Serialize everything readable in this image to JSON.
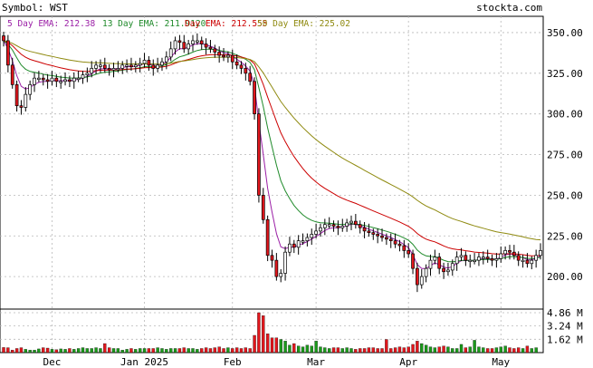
{
  "header": {
    "symbol_label": "Symbol: WST",
    "brand": "stockta.com"
  },
  "chart_data": {
    "type": "candlestick",
    "ticker": "WST",
    "legend": [
      {
        "label": "5 Day EMA: 212.38",
        "color": "#9b1fa6"
      },
      {
        "label": "13 Day EMA: 211.9120",
        "color": "#1f8a2a"
      },
      {
        "label": "Day EMA: 212.555",
        "color": "#cc0000"
      },
      {
        "label": "50 Day EMA: 225.02",
        "color": "#8f8a10"
      }
    ],
    "price_axis": {
      "ticks": [
        "350.00",
        "325.00",
        "300.00",
        "275.00",
        "250.00",
        "225.00",
        "200.00"
      ],
      "values": [
        350,
        325,
        300,
        275,
        250,
        225,
        200
      ],
      "ylim": [
        180,
        360
      ]
    },
    "volume_axis": {
      "ticks": [
        "4.86 M",
        "3.24 M",
        "1.62 M"
      ],
      "values": [
        4.86,
        3.24,
        1.62
      ],
      "ylim": [
        0,
        5.3
      ]
    },
    "x_labels": [
      {
        "text": "Dec",
        "index": 11
      },
      {
        "text": "Jan 2025",
        "index": 32
      },
      {
        "text": "Feb",
        "index": 52
      },
      {
        "text": "Mar",
        "index": 71
      },
      {
        "text": "Apr",
        "index": 92
      },
      {
        "text": "May",
        "index": 113
      }
    ],
    "closes": [
      345,
      330,
      318,
      305,
      304,
      312,
      318,
      322,
      322,
      321,
      320,
      322,
      320,
      320,
      321,
      320,
      322,
      322,
      324,
      325,
      328,
      330,
      330,
      328,
      327,
      328,
      328,
      330,
      330,
      329,
      330,
      331,
      333,
      330,
      328,
      330,
      332,
      335,
      340,
      345,
      344,
      340,
      343,
      345,
      345,
      343,
      341,
      340,
      338,
      336,
      335,
      336,
      332,
      330,
      328,
      325,
      320,
      300,
      250,
      235,
      213,
      210,
      200,
      202,
      215,
      220,
      218,
      222,
      222,
      224,
      226,
      228,
      230,
      232,
      232,
      231,
      230,
      231,
      233,
      234,
      232,
      230,
      228,
      227,
      226,
      225,
      224,
      223,
      222,
      220,
      219,
      216,
      214,
      205,
      195,
      200,
      205,
      210,
      212,
      205,
      203,
      204,
      208,
      212,
      213,
      210,
      210,
      210,
      212,
      212,
      211,
      210,
      211,
      214,
      216,
      215,
      213,
      210,
      210,
      208,
      210,
      213,
      216
    ],
    "volume": [
      0.62,
      0.6,
      0.3,
      0.5,
      0.6,
      0.4,
      0.3,
      0.3,
      0.45,
      0.6,
      0.55,
      0.4,
      0.35,
      0.45,
      0.4,
      0.5,
      0.4,
      0.5,
      0.6,
      0.5,
      0.5,
      0.6,
      0.5,
      1.1,
      0.6,
      0.5,
      0.5,
      0.3,
      0.4,
      0.5,
      0.4,
      0.5,
      0.5,
      0.5,
      0.5,
      0.6,
      0.5,
      0.4,
      0.5,
      0.5,
      0.5,
      0.6,
      0.5,
      0.5,
      0.4,
      0.5,
      0.6,
      0.5,
      0.6,
      0.7,
      0.5,
      0.6,
      0.5,
      0.6,
      0.5,
      0.6,
      0.5,
      2.1,
      4.86,
      4.5,
      2.3,
      1.8,
      1.8,
      1.6,
      1.4,
      0.9,
      1.1,
      0.8,
      0.7,
      0.9,
      0.8,
      1.4,
      0.7,
      0.6,
      0.5,
      0.6,
      0.6,
      0.5,
      0.6,
      0.5,
      0.4,
      0.5,
      0.5,
      0.6,
      0.6,
      0.5,
      0.5,
      1.6,
      0.5,
      0.6,
      0.7,
      0.6,
      0.7,
      1.0,
      1.4,
      1.1,
      0.9,
      0.7,
      0.6,
      0.7,
      0.8,
      0.7,
      0.5,
      0.5,
      1.0,
      0.6,
      0.7,
      1.5,
      0.7,
      0.6,
      0.5,
      0.5,
      0.6,
      0.7,
      0.8,
      0.6,
      0.5,
      0.6,
      0.5,
      0.8,
      0.5,
      0.6
    ]
  }
}
